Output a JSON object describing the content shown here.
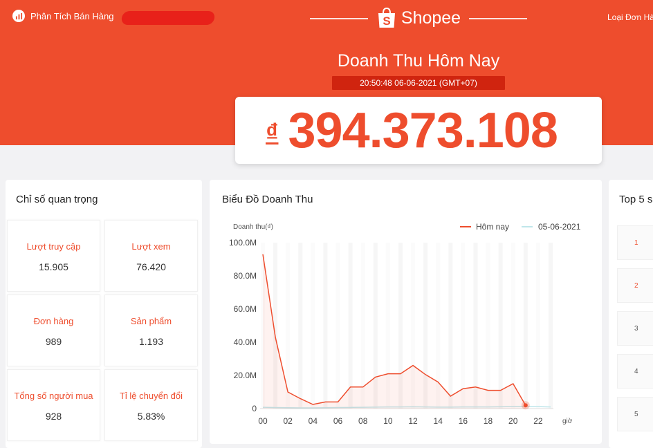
{
  "header": {
    "app_name": "Phân Tích Bán Hàng",
    "brand": "Shopee",
    "brand_mark": "S",
    "right_label": "Loại Đơn Hàng"
  },
  "revenue": {
    "title": "Doanh Thu Hôm Nay",
    "timestamp": "20:50:48 06-06-2021 (GMT+07)",
    "currency_symbol": "₫",
    "amount": "394.373.108"
  },
  "metrics_panel": {
    "title": "Chỉ số quan trọng",
    "items": [
      {
        "label": "Lượt truy cập",
        "value": "15.905"
      },
      {
        "label": "Lượt xem",
        "value": "76.420"
      },
      {
        "label": "Đơn hàng",
        "value": "989"
      },
      {
        "label": "Sản phẩm",
        "value": "1.193"
      },
      {
        "label": "Tổng số người mua",
        "value": "928"
      },
      {
        "label": "Tỉ lệ chuyển đổi",
        "value": "5.83%"
      }
    ]
  },
  "chart_panel": {
    "title": "Biểu Đồ Doanh Thu"
  },
  "top_panel": {
    "title": "Top 5 s",
    "ranks": [
      "1",
      "2",
      "3",
      "4",
      "5"
    ]
  },
  "colors": {
    "brand": "#ee4d2d",
    "timestamp_bg": "#d0240f",
    "series_today": "#ee4d2d",
    "series_yesterday": "#bfe6ea"
  },
  "chart_data": {
    "type": "line",
    "ylabel": "Doanh thu(₫)",
    "xlabel": "giờ",
    "ylim": [
      0,
      100
    ],
    "y_ticks": [
      "0",
      "20.0M",
      "40.0M",
      "60.0M",
      "80.0M",
      "100.0M"
    ],
    "x_ticks": [
      "00",
      "02",
      "04",
      "06",
      "08",
      "10",
      "12",
      "14",
      "16",
      "18",
      "20",
      "22"
    ],
    "legend_position": "top-right",
    "grid": true,
    "series": [
      {
        "name": "Hôm nay",
        "x": [
          0,
          1,
          2,
          3,
          4,
          5,
          6,
          7,
          8,
          9,
          10,
          11,
          12,
          13,
          14,
          15,
          16,
          17,
          18,
          19,
          20,
          21
        ],
        "values": [
          93,
          43,
          10,
          6,
          2.5,
          4,
          4,
          13,
          13,
          19,
          21,
          21,
          26,
          20.5,
          16,
          7.5,
          12,
          13,
          11,
          11,
          15,
          2
        ]
      },
      {
        "name": "05-06-2021",
        "x": [
          0,
          1,
          2,
          3,
          4,
          5,
          6,
          7,
          8,
          9,
          10,
          11,
          12,
          13,
          14,
          15,
          16,
          17,
          18,
          19,
          20,
          21,
          22,
          23
        ],
        "values": [
          0.8,
          0.6,
          0.5,
          0.4,
          0.4,
          0.5,
          0.6,
          0.7,
          0.8,
          0.9,
          1,
          1,
          1.1,
          1,
          0.9,
          0.9,
          1,
          1,
          1,
          1.1,
          1.2,
          1.3,
          1.2,
          1
        ]
      }
    ]
  }
}
